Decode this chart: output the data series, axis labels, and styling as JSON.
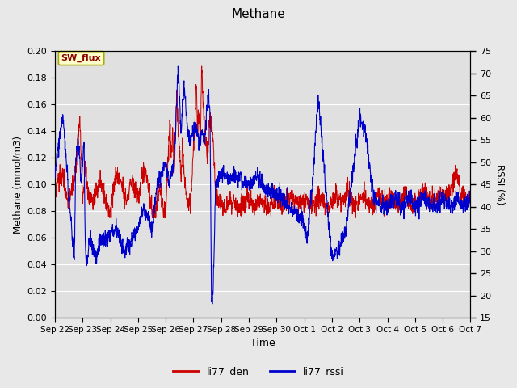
{
  "title": "Methane",
  "ylabel_left": "Methane (mmol/m3)",
  "ylabel_right": "RSSI (%)",
  "xlabel": "Time",
  "ylim_left": [
    0.0,
    0.2
  ],
  "ylim_right": [
    15,
    75
  ],
  "yticks_left": [
    0.0,
    0.02,
    0.04,
    0.06,
    0.08,
    0.1,
    0.12,
    0.14,
    0.16,
    0.18,
    0.2
  ],
  "yticks_right": [
    15,
    20,
    25,
    30,
    35,
    40,
    45,
    50,
    55,
    60,
    65,
    70,
    75
  ],
  "background_color": "#e0e0e0",
  "grid_color": "#ffffff",
  "fig_bg": "#e8e8e8",
  "line_color_den": "#cc0000",
  "line_color_rssi": "#0000cc",
  "legend_labels": [
    "li77_den",
    "li77_rssi"
  ],
  "annotation_text": "SW_flux",
  "annotation_bg": "#ffffcc",
  "annotation_border": "#aaaa00",
  "xtick_labels": [
    "Sep 22",
    "Sep 23",
    "Sep 24",
    "Sep 25",
    "Sep 26",
    "Sep 27",
    "Sep 28",
    "Sep 29",
    "Sep 30",
    "Oct 1",
    "Oct 2",
    "Oct 3",
    "Oct 4",
    "Oct 5",
    "Oct 6",
    "Oct 7"
  ]
}
